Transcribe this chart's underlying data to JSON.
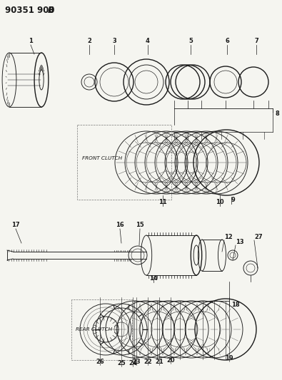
{
  "title1": "90351 900",
  "title2": "B",
  "bg": "#f5f5f0",
  "fg": "#1a1a1a",
  "front_clutch_label": "FRONT CLUTCH",
  "rear_clutch_label": "REAR CLUTCH",
  "fig_w": 3.95,
  "fig_h": 5.33,
  "dpi": 100
}
